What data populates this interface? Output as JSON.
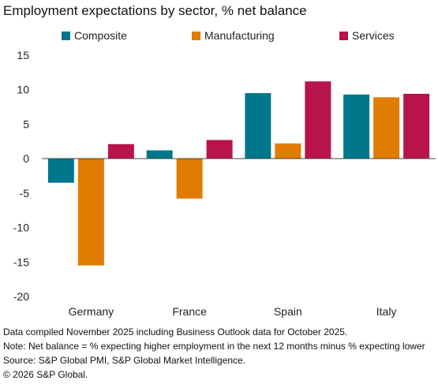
{
  "title": "Employment expectations by sector, % net balance",
  "colors": {
    "Composite": "#00778B",
    "Manufacturing": "#E07C00",
    "Services": "#B8144A"
  },
  "chart_data": {
    "type": "bar",
    "title": "Employment expectations by sector, % net balance",
    "categories": [
      "Germany",
      "France",
      "Spain",
      "Italy"
    ],
    "series": [
      {
        "name": "Composite",
        "values": [
          -3.5,
          1.2,
          9.5,
          9.3
        ]
      },
      {
        "name": "Manufacturing",
        "values": [
          -15.5,
          -5.8,
          2.2,
          8.9
        ]
      },
      {
        "name": "Services",
        "values": [
          2.1,
          2.7,
          11.2,
          9.4
        ]
      }
    ],
    "ylim": [
      -20,
      15
    ],
    "yticks": [
      15,
      10,
      5,
      0,
      -5,
      -10,
      -15,
      -20
    ],
    "legend_position": "top",
    "grid": false
  },
  "notes": [
    "Data compiled November 2025 including Business Outlook data for October 2025.",
    "Note: Net balance = % expecting higher employment in the next 12 months minus % expecting lower",
    "Source: S&P Global PMI, S&P Global Market Intelligence.",
    "© 2026 S&P Global."
  ]
}
